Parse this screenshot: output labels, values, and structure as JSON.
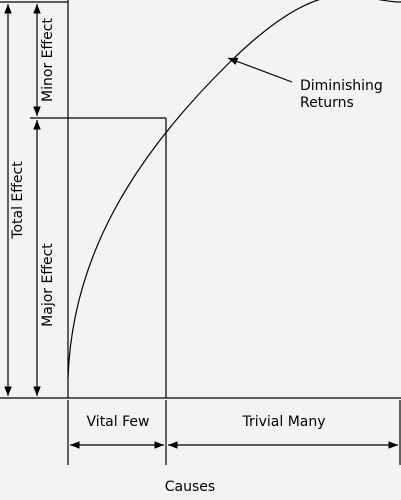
{
  "labels": {
    "total_effect": "Total Effect",
    "minor_effect": "Minor Effect",
    "major_effect": "Major Effect",
    "diminishing_returns": [
      "Diminishing",
      "Returns"
    ],
    "vital_few": "Vital Few",
    "trivial_many": "Trivial Many",
    "causes": "Causes"
  }
}
